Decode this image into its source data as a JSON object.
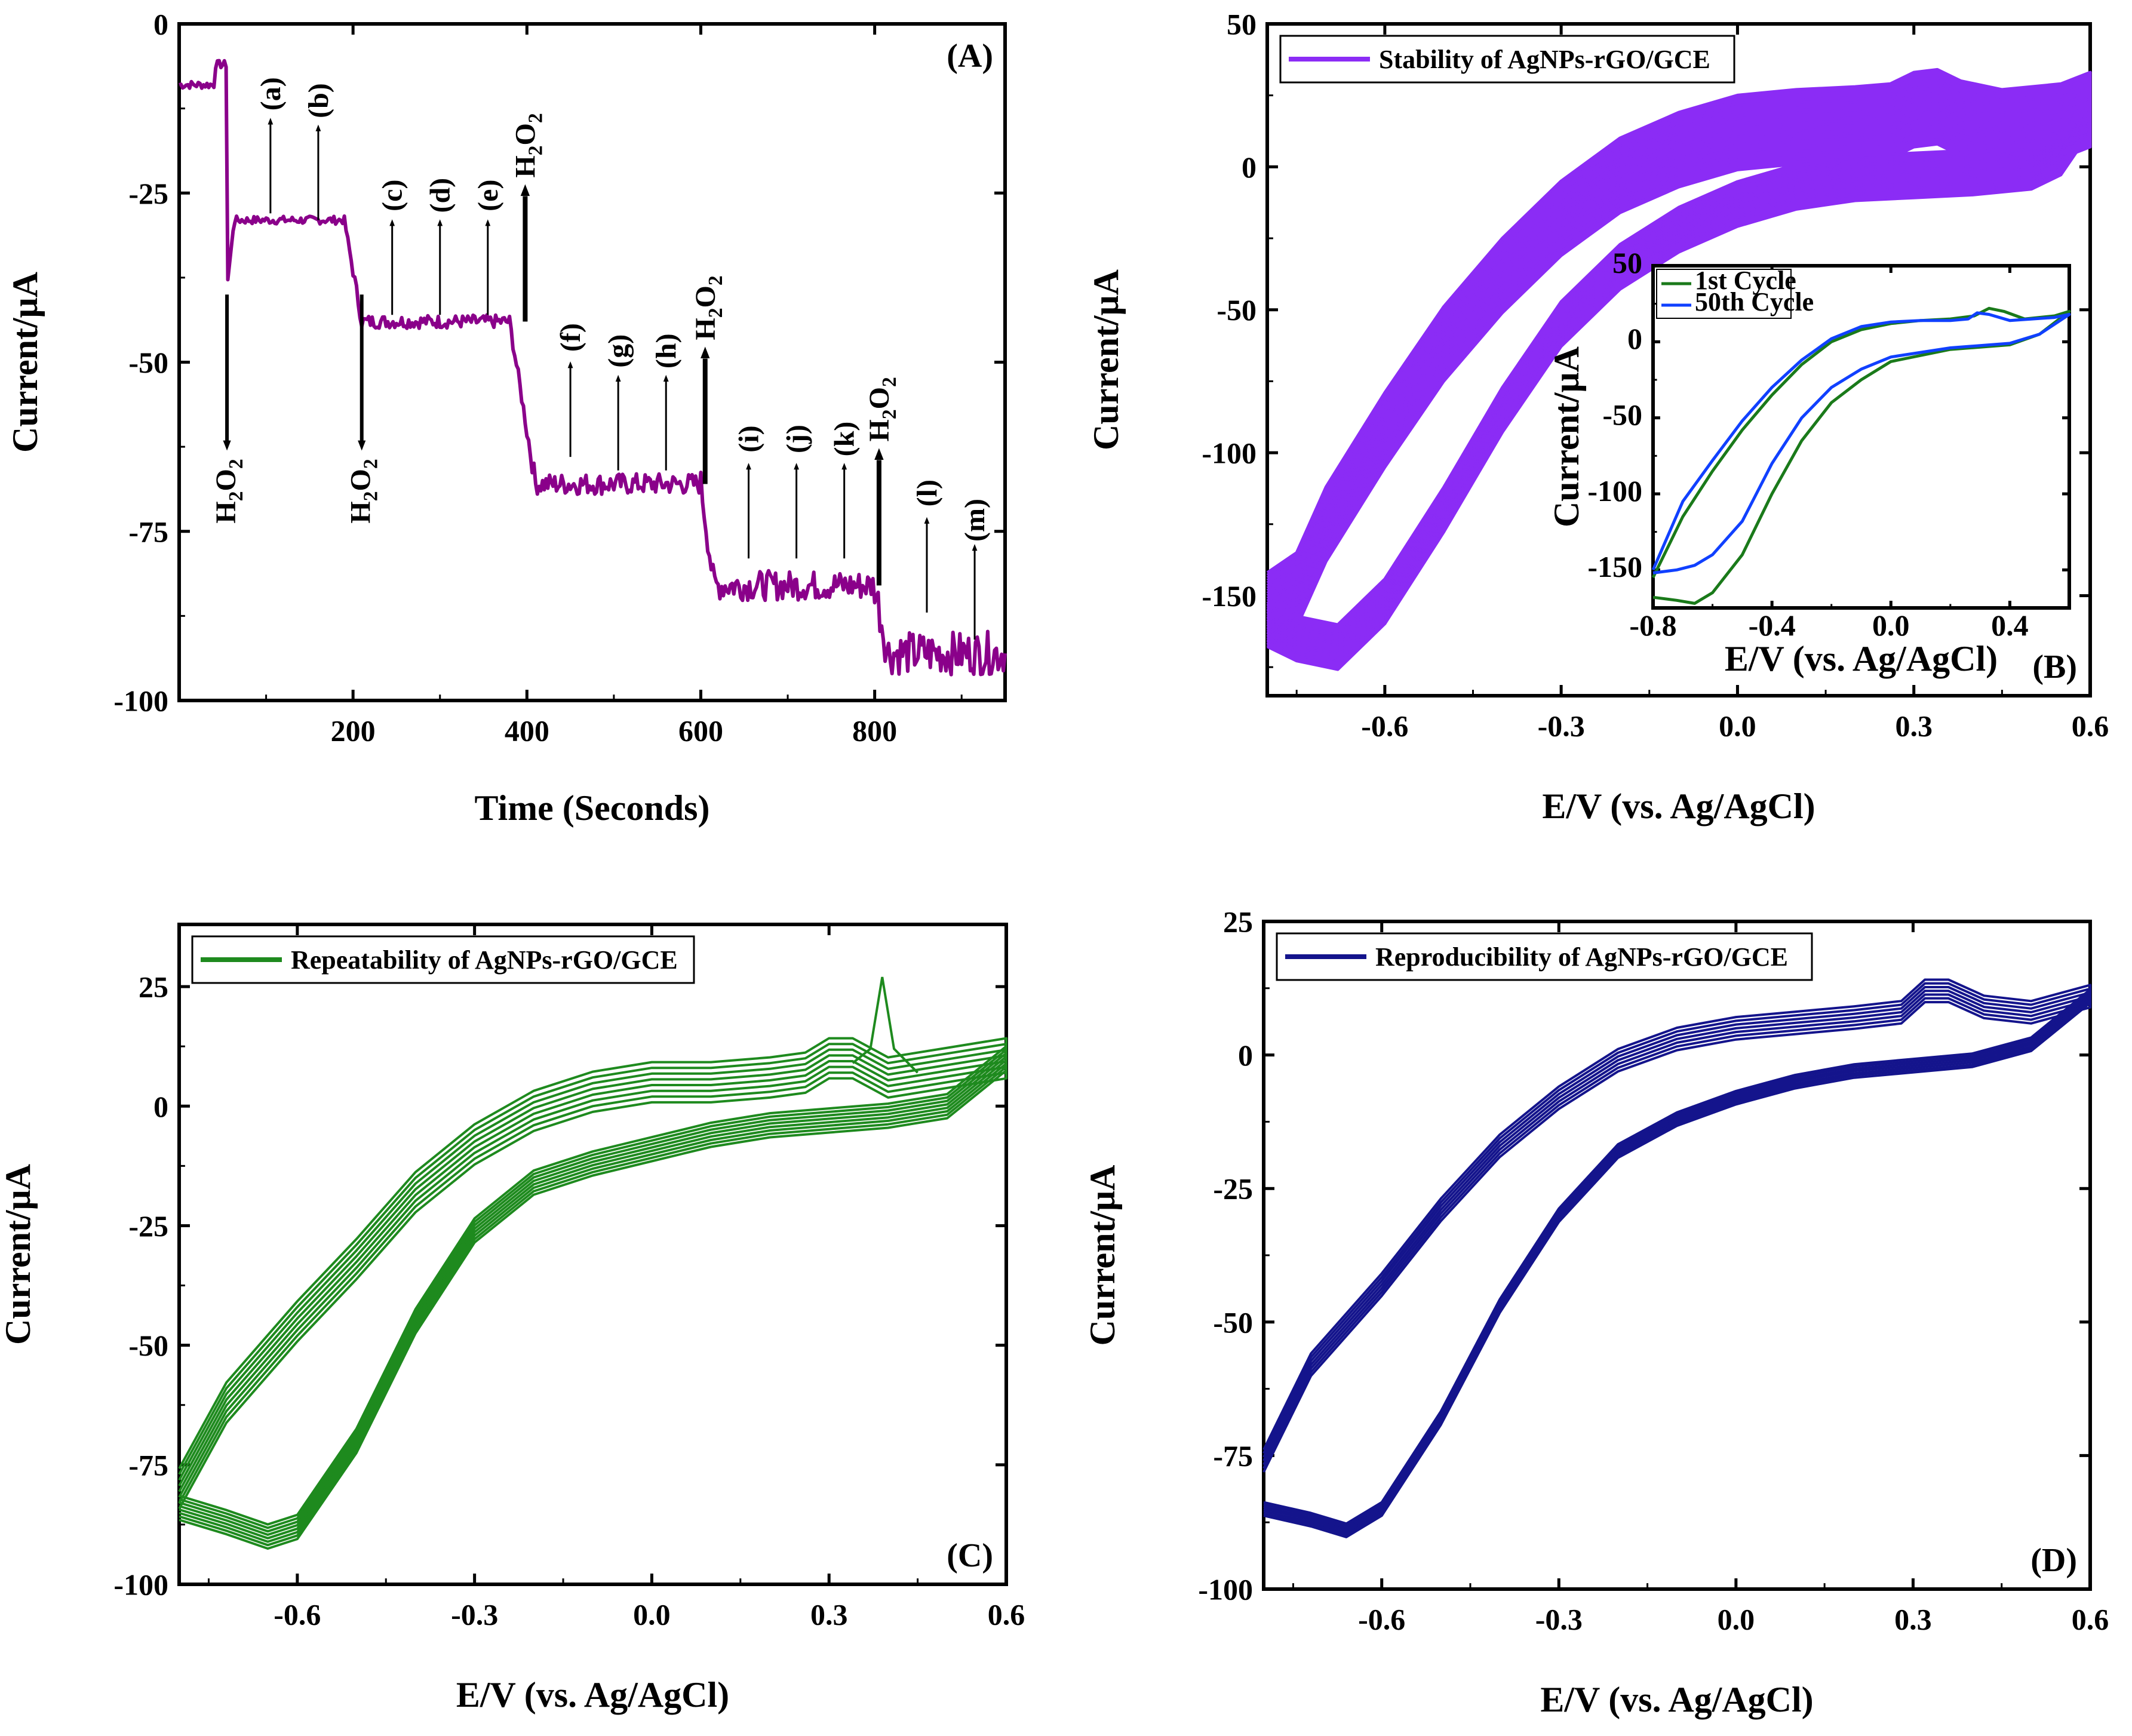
{
  "colors": {
    "A": "#8a008a",
    "B": "#8b2cf5",
    "B_inset_1st": "#1a7a1a",
    "B_inset_50th": "#1040ff",
    "C": "#1e8a1e",
    "D": "#14148c"
  },
  "chart_data": [
    {
      "id": "A",
      "type": "line",
      "panel_label": "(A)",
      "xlabel": "Time (Seconds)",
      "ylabel": "Current/μA",
      "xlim": [
        0,
        950
      ],
      "ylim": [
        -100,
        0
      ],
      "xticks": [
        200,
        400,
        600,
        800
      ],
      "yticks": [
        0,
        -25,
        -50,
        -75,
        -100
      ],
      "x_tick_labels": [
        "200",
        "400",
        "600",
        "800"
      ],
      "y_tick_labels": [
        "0",
        "-25",
        "-50",
        "-75",
        "-100"
      ],
      "steps": [
        {
          "t_start": 0,
          "t_end": 40,
          "level": -9
        },
        {
          "t_start": 40,
          "t_end": 55,
          "level": -6
        },
        {
          "t_start": 55,
          "t_end": 190,
          "level": -29
        },
        {
          "t_start": 210,
          "t_end": 380,
          "level": -44
        },
        {
          "t_start": 410,
          "t_end": 600,
          "level": -68
        },
        {
          "t_start": 615,
          "t_end": 800,
          "level": -83
        },
        {
          "t_start": 815,
          "t_end": 950,
          "level": -93
        }
      ],
      "h2o2_additions": [
        {
          "t": 55,
          "direction": "down",
          "label": "H2O2"
        },
        {
          "t": 210,
          "direction": "down",
          "label": "H2O2"
        },
        {
          "t": 398,
          "direction": "up",
          "label": "H2O2"
        },
        {
          "t": 605,
          "direction": "up",
          "label": "H2O2"
        },
        {
          "t": 805,
          "direction": "up",
          "label": "H2O2"
        }
      ],
      "letter_markers": [
        {
          "label": "(a)",
          "t": 105,
          "at": -28
        },
        {
          "label": "(b)",
          "t": 160,
          "at": -29
        },
        {
          "label": "(c)",
          "t": 245,
          "at": -43
        },
        {
          "label": "(d)",
          "t": 300,
          "at": -43
        },
        {
          "label": "(e)",
          "t": 355,
          "at": -43
        },
        {
          "label": "(f)",
          "t": 450,
          "at": -64
        },
        {
          "label": "(g)",
          "t": 505,
          "at": -66
        },
        {
          "label": "(h)",
          "t": 560,
          "at": -66
        },
        {
          "label": "(i)",
          "t": 655,
          "at": -79
        },
        {
          "label": "(j)",
          "t": 710,
          "at": -79
        },
        {
          "label": "(k)",
          "t": 765,
          "at": -79
        },
        {
          "label": "(l)",
          "t": 860,
          "at": -87
        },
        {
          "label": "(m)",
          "t": 915,
          "at": -91
        }
      ]
    },
    {
      "id": "B",
      "type": "line",
      "panel_label": "(B)",
      "legend": "Stability of AgNPs-rGO/GCE",
      "xlabel": "E/V (vs. Ag/AgCl)",
      "ylabel": "Current/μA",
      "xlim": [
        -0.8,
        0.6
      ],
      "ylim": [
        -185,
        50
      ],
      "xticks": [
        -0.6,
        -0.3,
        0.0,
        0.3,
        0.6
      ],
      "yticks": [
        50,
        0,
        -50,
        -100,
        -150
      ],
      "x_tick_labels": [
        "-0.6",
        "-0.3",
        "0.0",
        "0.3",
        "0.6"
      ],
      "y_tick_labels": [
        "50",
        "0",
        "-50",
        "-100",
        "-150"
      ],
      "cycles": 50,
      "anodic": [
        [
          -0.8,
          -155
        ],
        [
          -0.75,
          -148
        ],
        [
          -0.7,
          -125
        ],
        [
          -0.6,
          -92
        ],
        [
          -0.5,
          -62
        ],
        [
          -0.4,
          -38
        ],
        [
          -0.3,
          -18
        ],
        [
          -0.2,
          -3
        ],
        [
          -0.1,
          6
        ],
        [
          0.0,
          12
        ],
        [
          0.1,
          14
        ],
        [
          0.2,
          15
        ],
        [
          0.26,
          16
        ],
        [
          0.3,
          20
        ],
        [
          0.34,
          21
        ],
        [
          0.38,
          17
        ],
        [
          0.45,
          14
        ],
        [
          0.55,
          16
        ],
        [
          0.6,
          20
        ]
      ],
      "cathodic": [
        [
          0.6,
          20
        ],
        [
          0.55,
          5
        ],
        [
          0.5,
          0
        ],
        [
          0.4,
          -2
        ],
        [
          0.3,
          -3
        ],
        [
          0.2,
          -4
        ],
        [
          0.1,
          -7
        ],
        [
          0.0,
          -13
        ],
        [
          -0.1,
          -22
        ],
        [
          -0.2,
          -35
        ],
        [
          -0.3,
          -55
        ],
        [
          -0.4,
          -85
        ],
        [
          -0.5,
          -120
        ],
        [
          -0.6,
          -152
        ],
        [
          -0.68,
          -168
        ],
        [
          -0.75,
          -165
        ],
        [
          -0.8,
          -160
        ]
      ],
      "inset": {
        "xlabel": "E/V (vs. Ag/AgCl)",
        "ylabel": "Current/μA",
        "xlim": [
          -0.8,
          0.6
        ],
        "ylim": [
          -175,
          50
        ],
        "xticks": [
          -0.8,
          -0.4,
          0.0,
          0.4
        ],
        "yticks": [
          50,
          0,
          -50,
          -100,
          -150
        ],
        "x_tick_labels": [
          "-0.8",
          "-0.4",
          "0.0",
          "0.4"
        ],
        "y_tick_labels": [
          "50",
          "0",
          "-50",
          "-100",
          "-150"
        ],
        "series": [
          {
            "name": "1st Cycle",
            "anodic": [
              [
                -0.8,
                -155
              ],
              [
                -0.7,
                -115
              ],
              [
                -0.6,
                -85
              ],
              [
                -0.5,
                -58
              ],
              [
                -0.4,
                -35
              ],
              [
                -0.3,
                -15
              ],
              [
                -0.2,
                0
              ],
              [
                -0.1,
                8
              ],
              [
                0.0,
                12
              ],
              [
                0.1,
                14
              ],
              [
                0.2,
                15
              ],
              [
                0.28,
                17
              ],
              [
                0.33,
                22
              ],
              [
                0.38,
                20
              ],
              [
                0.45,
                15
              ],
              [
                0.55,
                17
              ],
              [
                0.6,
                20
              ]
            ],
            "cathodic": [
              [
                0.6,
                20
              ],
              [
                0.5,
                5
              ],
              [
                0.4,
                -2
              ],
              [
                0.2,
                -5
              ],
              [
                0.0,
                -13
              ],
              [
                -0.1,
                -25
              ],
              [
                -0.2,
                -40
              ],
              [
                -0.3,
                -65
              ],
              [
                -0.4,
                -100
              ],
              [
                -0.5,
                -140
              ],
              [
                -0.6,
                -165
              ],
              [
                -0.66,
                -172
              ],
              [
                -0.72,
                -170
              ],
              [
                -0.8,
                -168
              ]
            ]
          },
          {
            "name": "50th Cycle",
            "anodic": [
              [
                -0.8,
                -150
              ],
              [
                -0.7,
                -105
              ],
              [
                -0.6,
                -78
              ],
              [
                -0.5,
                -52
              ],
              [
                -0.4,
                -30
              ],
              [
                -0.3,
                -12
              ],
              [
                -0.2,
                2
              ],
              [
                -0.1,
                10
              ],
              [
                0.0,
                13
              ],
              [
                0.1,
                14
              ],
              [
                0.2,
                14
              ],
              [
                0.26,
                15
              ],
              [
                0.29,
                19
              ],
              [
                0.33,
                18
              ],
              [
                0.4,
                14
              ],
              [
                0.55,
                16
              ],
              [
                0.6,
                18
              ]
            ],
            "cathodic": [
              [
                0.6,
                18
              ],
              [
                0.5,
                5
              ],
              [
                0.4,
                -1
              ],
              [
                0.2,
                -4
              ],
              [
                0.0,
                -10
              ],
              [
                -0.1,
                -18
              ],
              [
                -0.2,
                -30
              ],
              [
                -0.3,
                -50
              ],
              [
                -0.4,
                -80
              ],
              [
                -0.5,
                -118
              ],
              [
                -0.6,
                -140
              ],
              [
                -0.66,
                -147
              ],
              [
                -0.72,
                -150
              ],
              [
                -0.8,
                -152
              ]
            ]
          }
        ]
      }
    },
    {
      "id": "C",
      "type": "line",
      "panel_label": "(C)",
      "legend": "Repeatability of AgNPs-rGO/GCE",
      "xlabel": "E/V (vs. Ag/AgCl)",
      "ylabel": "Current/μA",
      "xlim": [
        -0.8,
        0.6
      ],
      "ylim": [
        -100,
        38
      ],
      "xticks": [
        -0.6,
        -0.3,
        0.0,
        0.3,
        0.6
      ],
      "yticks": [
        25,
        0,
        -25,
        -50,
        -75,
        -100
      ],
      "x_tick_labels": [
        "-0.6",
        "-0.3",
        "0.0",
        "0.3",
        "0.6"
      ],
      "y_tick_labels": [
        "25",
        "0",
        "-25",
        "-50",
        "-75",
        "-100"
      ],
      "anodic": [
        [
          -0.8,
          -80
        ],
        [
          -0.72,
          -62
        ],
        [
          -0.6,
          -45
        ],
        [
          -0.5,
          -32
        ],
        [
          -0.4,
          -18
        ],
        [
          -0.3,
          -8
        ],
        [
          -0.2,
          -1
        ],
        [
          -0.1,
          3
        ],
        [
          0.0,
          5
        ],
        [
          0.1,
          5
        ],
        [
          0.2,
          6
        ],
        [
          0.26,
          7
        ],
        [
          0.3,
          10
        ],
        [
          0.34,
          10
        ],
        [
          0.37,
          8
        ],
        [
          0.4,
          6
        ],
        [
          0.5,
          8
        ],
        [
          0.6,
          10
        ]
      ],
      "cathodic": [
        [
          0.6,
          10
        ],
        [
          0.5,
          0
        ],
        [
          0.4,
          -2
        ],
        [
          0.3,
          -3
        ],
        [
          0.2,
          -4
        ],
        [
          0.1,
          -6
        ],
        [
          0.0,
          -9
        ],
        [
          -0.1,
          -12
        ],
        [
          -0.2,
          -16
        ],
        [
          -0.3,
          -26
        ],
        [
          -0.4,
          -45
        ],
        [
          -0.5,
          -70
        ],
        [
          -0.6,
          -88
        ],
        [
          -0.65,
          -90
        ],
        [
          -0.72,
          -87
        ],
        [
          -0.8,
          -84
        ]
      ],
      "peak_spike": {
        "x": 0.39,
        "y": 27
      }
    },
    {
      "id": "D",
      "type": "line",
      "panel_label": "(D)",
      "legend": "Reproducibility of AgNPs-rGO/GCE",
      "xlabel": "E/V (vs. Ag/AgCl)",
      "ylabel": "Current/μA",
      "xlim": [
        -0.8,
        0.6
      ],
      "ylim": [
        -100,
        25
      ],
      "xticks": [
        -0.6,
        -0.3,
        0.0,
        0.3,
        0.6
      ],
      "yticks": [
        25,
        0,
        -25,
        -50,
        -75,
        -100
      ],
      "x_tick_labels": [
        "-0.6",
        "-0.3",
        "0.0",
        "0.3",
        "0.6"
      ],
      "y_tick_labels": [
        "25",
        "0",
        "-25",
        "-50",
        "-75",
        "-100"
      ],
      "anodic": [
        [
          -0.8,
          -76
        ],
        [
          -0.72,
          -58
        ],
        [
          -0.6,
          -43
        ],
        [
          -0.5,
          -29
        ],
        [
          -0.4,
          -17
        ],
        [
          -0.3,
          -8
        ],
        [
          -0.2,
          -1
        ],
        [
          -0.1,
          3
        ],
        [
          0.0,
          5
        ],
        [
          0.1,
          6
        ],
        [
          0.2,
          7
        ],
        [
          0.28,
          8
        ],
        [
          0.32,
          12
        ],
        [
          0.36,
          12
        ],
        [
          0.42,
          9
        ],
        [
          0.5,
          8
        ],
        [
          0.6,
          11
        ]
      ],
      "cathodic": [
        [
          0.6,
          11
        ],
        [
          0.5,
          2
        ],
        [
          0.4,
          -1
        ],
        [
          0.3,
          -2
        ],
        [
          0.2,
          -3
        ],
        [
          0.1,
          -5
        ],
        [
          0.0,
          -8
        ],
        [
          -0.1,
          -12
        ],
        [
          -0.2,
          -18
        ],
        [
          -0.3,
          -30
        ],
        [
          -0.4,
          -47
        ],
        [
          -0.5,
          -68
        ],
        [
          -0.6,
          -85
        ],
        [
          -0.66,
          -89
        ],
        [
          -0.72,
          -87
        ],
        [
          -0.8,
          -85
        ]
      ]
    }
  ]
}
